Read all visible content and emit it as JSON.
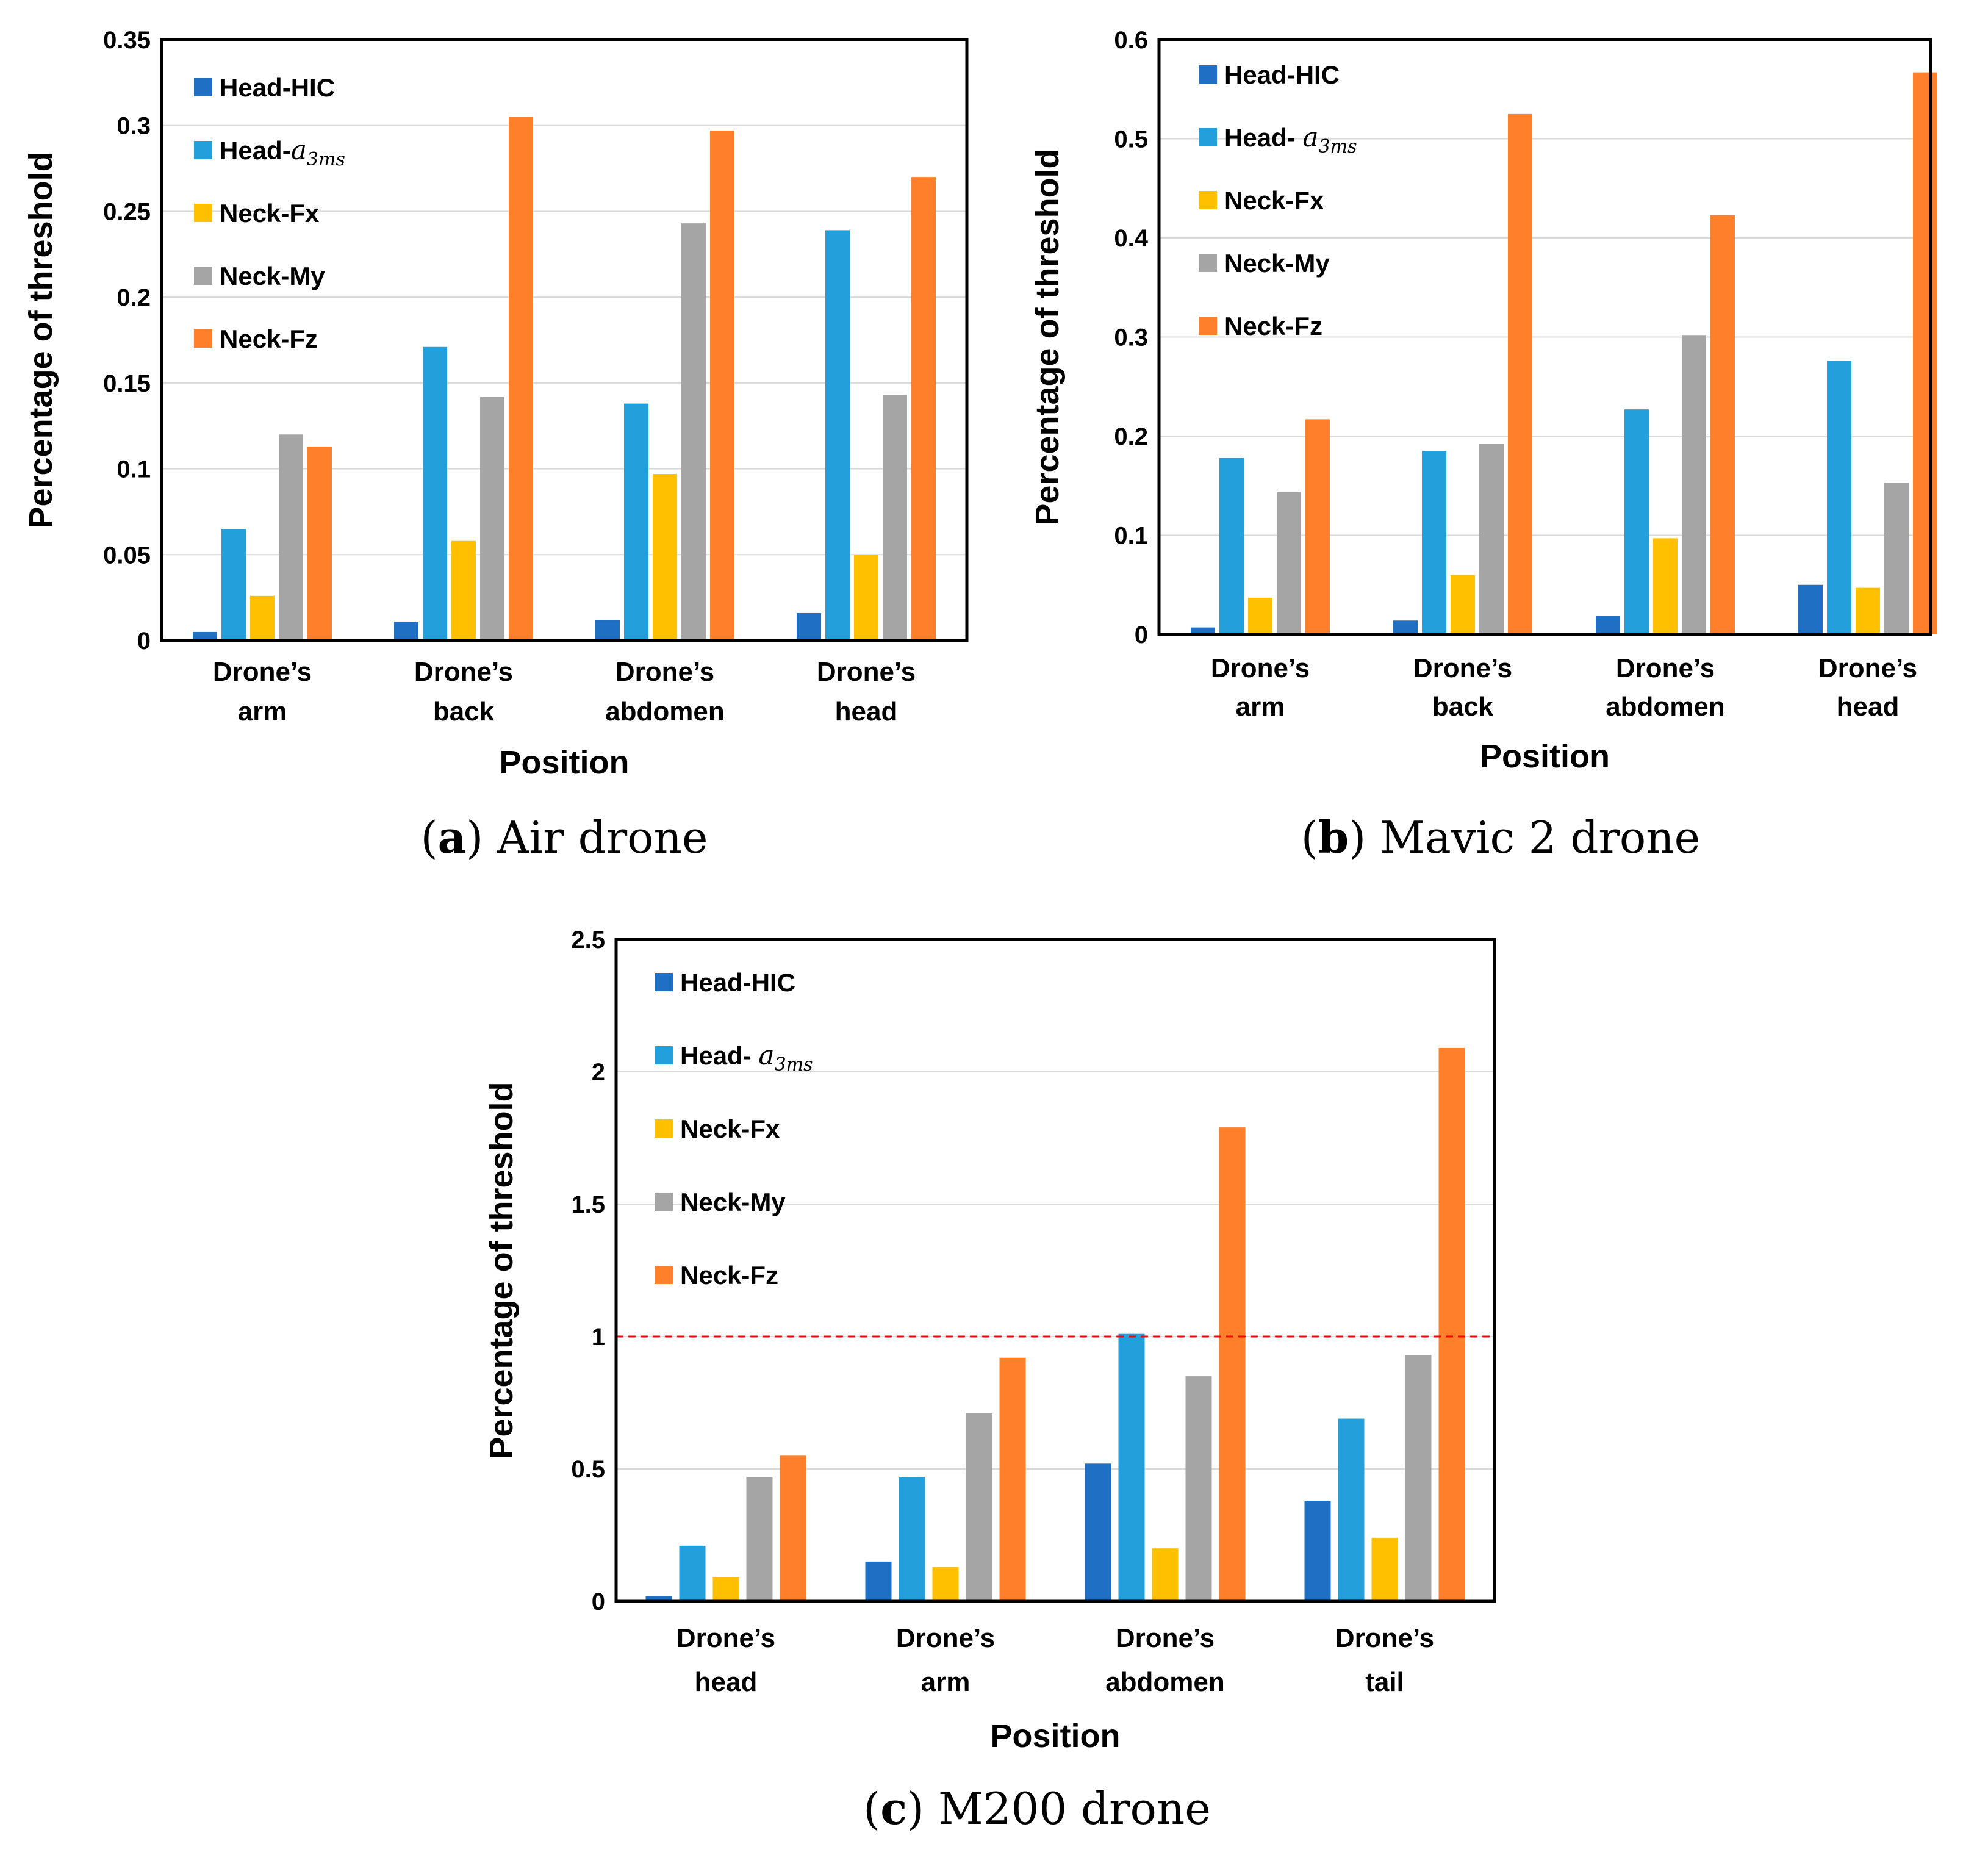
{
  "chart_data": [
    {
      "type": "bar",
      "caption": {
        "letter": "a",
        "text": "Air drone"
      },
      "xlabel": "Position",
      "ylabel": "Percentage of threshold",
      "ylim": [
        0,
        0.35
      ],
      "yticks": [
        "0",
        "0.05",
        "0.1",
        "0.15",
        "0.2",
        "0.25",
        "0.3",
        "0.35"
      ],
      "categories": [
        [
          "Drone’s",
          "arm"
        ],
        [
          "Drone’s",
          "back"
        ],
        [
          "Drone’s",
          "abdomen"
        ],
        [
          "Drone’s",
          "head"
        ]
      ],
      "series": [
        {
          "name": "Head-HIC",
          "color": "#1f6fc5",
          "values": [
            0.005,
            0.011,
            0.012,
            0.016
          ]
        },
        {
          "name": "Head-",
          "name_math": "a",
          "name_sub": "3ms",
          "color": "#23a0dc",
          "values": [
            0.065,
            0.171,
            0.138,
            0.239
          ]
        },
        {
          "name": "Neck-Fx",
          "color": "#ffc000",
          "values": [
            0.026,
            0.058,
            0.097,
            0.05
          ]
        },
        {
          "name": "Neck-My",
          "color": "#a5a5a5",
          "values": [
            0.12,
            0.142,
            0.243,
            0.143
          ]
        },
        {
          "name": "Neck-Fz",
          "color": "#ff7f2a",
          "values": [
            0.113,
            0.305,
            0.297,
            0.27
          ]
        }
      ],
      "legend": "top-left inside",
      "grid": true
    },
    {
      "type": "bar",
      "caption": {
        "letter": "b",
        "text": "Mavic 2 drone"
      },
      "xlabel": "Position",
      "ylabel": "Percentage of threshold",
      "ylim": [
        0,
        0.6
      ],
      "yticks": [
        "0",
        "0.1",
        "0.2",
        "0.3",
        "0.4",
        "0.5",
        "0.6"
      ],
      "categories": [
        [
          "Drone’s",
          "arm"
        ],
        [
          "Drone’s",
          "back"
        ],
        [
          "Drone’s",
          "abdomen"
        ],
        [
          "Drone’s",
          "head"
        ]
      ],
      "series": [
        {
          "name": "Head-HIC",
          "color": "#1f6fc5",
          "values": [
            0.007,
            0.014,
            0.019,
            0.05
          ]
        },
        {
          "name": "Head- ",
          "name_math": "a",
          "name_sub": "3ms",
          "color": "#23a0dc",
          "values": [
            0.178,
            0.185,
            0.227,
            0.276
          ]
        },
        {
          "name": "Neck-Fx",
          "color": "#ffc000",
          "values": [
            0.037,
            0.06,
            0.097,
            0.047
          ]
        },
        {
          "name": "Neck-My",
          "color": "#a5a5a5",
          "values": [
            0.144,
            0.192,
            0.302,
            0.153
          ]
        },
        {
          "name": "Neck-Fz",
          "color": "#ff7f2a",
          "values": [
            0.217,
            0.525,
            0.423,
            0.567
          ]
        }
      ],
      "legend": "top-left inside",
      "grid": true
    },
    {
      "type": "bar",
      "caption": {
        "letter": "c",
        "text": "M200 drone"
      },
      "xlabel": "Position",
      "ylabel": "Percentage of threshold",
      "ylim": [
        0,
        2.5
      ],
      "yticks": [
        "0",
        "0.5",
        "1",
        "1.5",
        "2",
        "2.5"
      ],
      "categories": [
        [
          "Drone’s",
          "head"
        ],
        [
          "Drone’s",
          "arm"
        ],
        [
          "Drone’s",
          "abdomen"
        ],
        [
          "Drone’s",
          "tail"
        ]
      ],
      "series": [
        {
          "name": "Head-HIC",
          "color": "#1f6fc5",
          "values": [
            0.02,
            0.15,
            0.52,
            0.38
          ]
        },
        {
          "name": "Head- ",
          "name_math": "a",
          "name_sub": "3ms",
          "color": "#23a0dc",
          "values": [
            0.21,
            0.47,
            1.01,
            0.69
          ]
        },
        {
          "name": "Neck-Fx",
          "color": "#ffc000",
          "values": [
            0.09,
            0.13,
            0.2,
            0.24
          ]
        },
        {
          "name": "Neck-My",
          "color": "#a5a5a5",
          "values": [
            0.47,
            0.71,
            0.85,
            0.93
          ]
        },
        {
          "name": "Neck-Fz",
          "color": "#ff7f2a",
          "values": [
            0.55,
            0.92,
            1.79,
            2.09
          ]
        }
      ],
      "threshold_line": {
        "value": 1,
        "color": "#ff0000",
        "style": "dashed"
      },
      "legend": "top-left inside",
      "grid": true
    }
  ]
}
